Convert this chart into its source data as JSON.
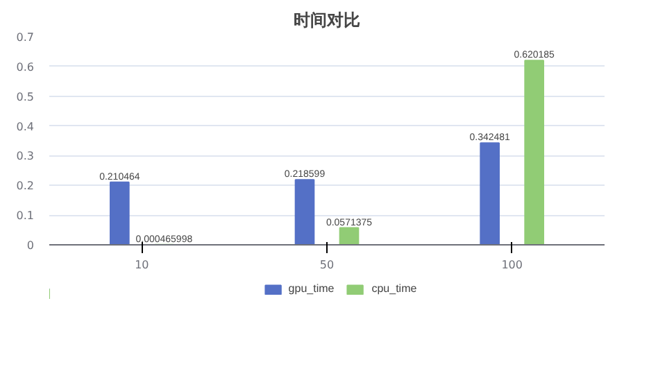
{
  "chart_data": {
    "type": "bar",
    "title": "时间对比",
    "categories": [
      "10",
      "50",
      "100"
    ],
    "series": [
      {
        "name": "gpu_time",
        "color": "#5470c6",
        "values": [
          0.210464,
          0.218599,
          0.342481
        ]
      },
      {
        "name": "cpu_time",
        "color": "#91cc75",
        "values": [
          0.000465998,
          0.0571375,
          0.620185
        ]
      }
    ],
    "ylim": [
      0,
      0.7
    ],
    "yticks": [
      0,
      0.1,
      0.2,
      0.3,
      0.4,
      0.5,
      0.6,
      0.7
    ],
    "grid": "y",
    "legend": "bottom",
    "data_labels": true
  }
}
